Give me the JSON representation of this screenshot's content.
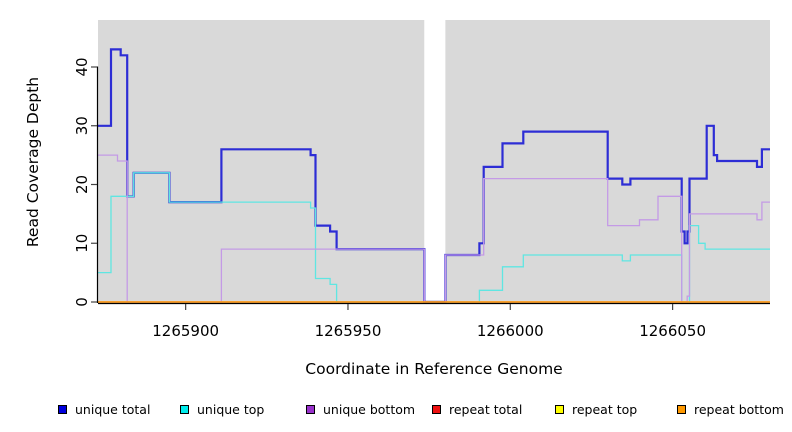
{
  "chart_data": {
    "type": "line",
    "subtype": "step-coverage-plot",
    "title": "",
    "xlabel": "Coordinate in Reference Genome",
    "ylabel": "Read Coverage Depth",
    "xlim": [
      1265873,
      1266080
    ],
    "ylim": [
      0,
      48
    ],
    "xticks": [
      1265900,
      1265950,
      1266000,
      1266050
    ],
    "xtick_labels": [
      "1265900",
      "1265950",
      "1266000",
      "1266050"
    ],
    "yticks": [
      0,
      10,
      20,
      30,
      40
    ],
    "ytick_labels": [
      "0",
      "10",
      "20",
      "30",
      "40"
    ],
    "grid": false,
    "plot_bg_color": "#d9d9d9",
    "page_bg_color": "#ffffff",
    "gap_region": {
      "x0": 1265973.5,
      "x1": 1265980,
      "color": "#ffffff"
    },
    "legend_position": "bottom",
    "series": [
      {
        "name": "unique total",
        "color": "#2d2dd5",
        "width": 2.2,
        "steps": [
          [
            1265873,
            30
          ],
          [
            1265877,
            43
          ],
          [
            1265880,
            42
          ],
          [
            1265882,
            18
          ],
          [
            1265884,
            22
          ],
          [
            1265895,
            17
          ],
          [
            1265911,
            26
          ],
          [
            1265938.5,
            25
          ],
          [
            1265940,
            13
          ],
          [
            1265944.5,
            12
          ],
          [
            1265946.5,
            9
          ],
          [
            1265973.5,
            0
          ],
          [
            1265980,
            8
          ],
          [
            1265990.5,
            10
          ],
          [
            1265991.8,
            23
          ],
          [
            1265997.6,
            27
          ],
          [
            1266004,
            29
          ],
          [
            1266030,
            21
          ],
          [
            1266034.5,
            20
          ],
          [
            1266037,
            21
          ],
          [
            1266052.8,
            12
          ],
          [
            1266053.7,
            10
          ],
          [
            1266054.6,
            12
          ],
          [
            1266055.2,
            21
          ],
          [
            1266060.5,
            30
          ],
          [
            1266062.7,
            25
          ],
          [
            1266063.7,
            24
          ],
          [
            1266076,
            23
          ],
          [
            1266077.5,
            26
          ]
        ]
      },
      {
        "name": "unique top",
        "color": "#5fe6e2",
        "width": 1.3,
        "steps": [
          [
            1265873,
            5
          ],
          [
            1265877,
            18
          ],
          [
            1265884,
            22
          ],
          [
            1265895,
            17
          ],
          [
            1265938.5,
            16
          ],
          [
            1265940,
            4
          ],
          [
            1265944.5,
            3
          ],
          [
            1265946.5,
            0
          ],
          [
            1265990.5,
            2
          ],
          [
            1265997.6,
            6
          ],
          [
            1266004,
            8
          ],
          [
            1266034.5,
            7
          ],
          [
            1266037,
            8
          ],
          [
            1266052.8,
            0
          ],
          [
            1266055.2,
            13
          ],
          [
            1266058,
            10
          ],
          [
            1266060,
            9
          ]
        ]
      },
      {
        "name": "unique bottom",
        "color": "#c49ae6",
        "width": 1.3,
        "steps": [
          [
            1265873,
            25
          ],
          [
            1265879,
            24
          ],
          [
            1265882,
            0
          ],
          [
            1265911,
            9
          ],
          [
            1265973.5,
            0
          ],
          [
            1265980,
            8
          ],
          [
            1265991.8,
            21
          ],
          [
            1266030,
            13
          ],
          [
            1266039.8,
            14
          ],
          [
            1266045.5,
            18
          ],
          [
            1266052.8,
            0
          ],
          [
            1266054.5,
            1
          ],
          [
            1266055.2,
            15
          ],
          [
            1266076,
            14
          ],
          [
            1266077.5,
            17
          ]
        ]
      },
      {
        "name": "repeat total",
        "color": "#dd2020",
        "width": 1.2,
        "steps": [
          [
            1265873,
            0
          ]
        ]
      },
      {
        "name": "repeat top",
        "color": "#eeee22",
        "width": 1.2,
        "steps": [
          [
            1265873,
            0
          ]
        ]
      },
      {
        "name": "repeat bottom",
        "color": "#ff9714",
        "width": 1.6,
        "steps": [
          [
            1265873,
            0
          ]
        ]
      }
    ],
    "legend": [
      {
        "label": "unique total",
        "color": "#0000dd"
      },
      {
        "label": "unique top",
        "color": "#00eded"
      },
      {
        "label": "unique bottom",
        "color": "#9932cc"
      },
      {
        "label": "repeat total",
        "color": "#ee1111"
      },
      {
        "label": "repeat top",
        "color": "#ffff00"
      },
      {
        "label": "repeat bottom",
        "color": "#ff9900"
      }
    ]
  },
  "layout_note": "R-style coverage step plot with masked (white) repeat gap region"
}
